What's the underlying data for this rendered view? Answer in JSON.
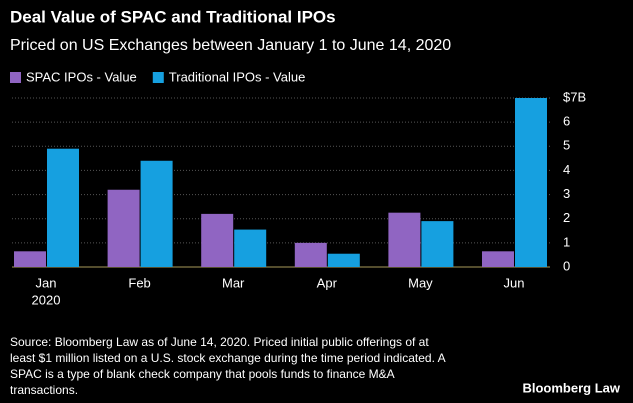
{
  "chart_data": {
    "type": "bar",
    "title": "Deal Value of SPAC and Traditional IPOs",
    "subtitle": "Priced on US Exchanges between January 1 to June 14, 2020",
    "categories": [
      "Jan",
      "Feb",
      "Mar",
      "Apr",
      "May",
      "Jun"
    ],
    "x_year_label": "2020",
    "series": [
      {
        "name": "SPAC IPOs - Value",
        "color": "#9065c2",
        "values": [
          0.65,
          3.2,
          2.2,
          1.0,
          2.25,
          0.65
        ]
      },
      {
        "name": "Traditional IPOs - Value",
        "color": "#16a0e0",
        "values": [
          4.9,
          4.4,
          1.55,
          0.55,
          1.9,
          7.0
        ]
      }
    ],
    "ylim": [
      0,
      7
    ],
    "yticks": [
      0,
      1,
      2,
      3,
      4,
      5,
      6,
      {
        "value": 7,
        "label": "$7B"
      }
    ],
    "grid": true,
    "source": [
      "Source: Bloomberg Law as of June 14, 2020. Priced initial public offerings of at",
      "least $1 million listed on a U.S. stock exchange during the time period indicated. A",
      "SPAC is a type of blank check company that pools funds to finance M&A",
      "transactions."
    ],
    "brand": "Bloomberg Law"
  }
}
